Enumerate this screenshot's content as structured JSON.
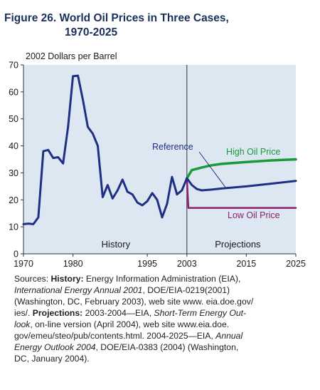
{
  "figure": {
    "title_line1": "Figure 26.  World Oil Prices in Three Cases,",
    "title_line2": "1970-2025"
  },
  "chart_data": {
    "type": "line",
    "title": "Figure 26. World Oil Prices in Three Cases, 1970-2025",
    "ylabel": "2002 Dollars per Barrel",
    "xlabel": "",
    "xlim": [
      1970,
      2025
    ],
    "ylim": [
      0,
      70
    ],
    "yticks": [
      0,
      10,
      20,
      30,
      40,
      50,
      60,
      70
    ],
    "xtick_labels": [
      "1970",
      "1980",
      "1995",
      "2003",
      "2015",
      "2025"
    ],
    "grid": false,
    "divider_x": 2003,
    "region_labels": [
      "History",
      "Projections"
    ],
    "colors": {
      "plot_background": "#dde7f1",
      "history_reference": "#1f2f83",
      "high": "#1b9a3c",
      "low": "#8b1f6e",
      "title": "#1b2f5c"
    },
    "series": [
      {
        "name": "History",
        "x": [
          1970,
          1971,
          1972,
          1973,
          1974,
          1975,
          1976,
          1977,
          1978,
          1979,
          1980,
          1981,
          1982,
          1983,
          1984,
          1985,
          1986,
          1987,
          1988,
          1989,
          1990,
          1991,
          1992,
          1993,
          1994,
          1995,
          1996,
          1997,
          1998,
          1999,
          2000,
          2001,
          2002,
          2003
        ],
        "y": [
          11,
          11.2,
          11,
          13.5,
          38,
          38.5,
          35.5,
          35.8,
          33.5,
          47,
          65.8,
          66,
          57,
          47,
          44.5,
          40,
          21,
          25.5,
          20.5,
          23.5,
          27.5,
          23,
          22,
          19,
          18,
          19.5,
          22.5,
          20,
          13.5,
          18.5,
          28.5,
          22,
          23.5,
          28
        ]
      },
      {
        "name": "Reference",
        "x": [
          2003,
          2004,
          2005,
          2006,
          2008,
          2010,
          2015,
          2020,
          2025
        ],
        "y": [
          28,
          25.5,
          24,
          23.5,
          23.8,
          24.2,
          25,
          26,
          27
        ]
      },
      {
        "name": "High Oil Price",
        "x": [
          2003,
          2004,
          2006,
          2008,
          2010,
          2015,
          2020,
          2025
        ],
        "y": [
          28,
          31,
          32,
          32.8,
          33.3,
          34,
          34.6,
          35
        ]
      },
      {
        "name": "Low Oil Price",
        "x": [
          2003,
          2003.3,
          2006,
          2010,
          2015,
          2020,
          2025
        ],
        "y": [
          28,
          17,
          17,
          17,
          17,
          17,
          17
        ]
      }
    ]
  },
  "sources": {
    "rows": [
      [
        {
          "t": "Sources: "
        },
        {
          "t": "History:",
          "b": true
        },
        {
          "t": " Energy Information Administration (EIA),"
        }
      ],
      [
        {
          "t": "International Energy Annual 2001",
          "i": true
        },
        {
          "t": ", DOE/EIA-0219(2001)"
        }
      ],
      [
        {
          "t": "(Washington, DC, February 2003), web site www. eia.doe.gov/"
        }
      ],
      [
        {
          "t": "ies/. "
        },
        {
          "t": "Projections:",
          "b": true
        },
        {
          "t": " 2003-2004—EIA, "
        },
        {
          "t": "Short-Term Energy Out-",
          "i": true
        }
      ],
      [
        {
          "t": "look",
          "i": true
        },
        {
          "t": ", on-line version (April 2004), web site www.eia.doe."
        }
      ],
      [
        {
          "t": "gov/emeu/steo/pub/contents.html. 2004-2025—EIA, "
        },
        {
          "t": "Annual",
          "i": true
        }
      ],
      [
        {
          "t": "Energy Outlook 2004",
          "i": true
        },
        {
          "t": ", DOE/EIA-0383 (2004) (Washington,"
        }
      ],
      [
        {
          "t": "DC, January 2004)."
        }
      ]
    ]
  }
}
